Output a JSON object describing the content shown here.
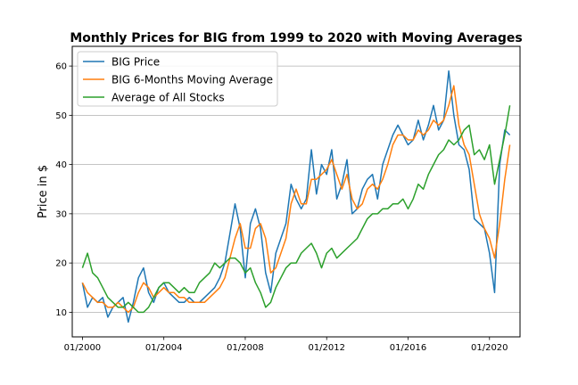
{
  "chart_data": {
    "type": "line",
    "title": "Monthly Prices for BIG from 1999 to 2020 with Moving Averages",
    "xlabel": "",
    "ylabel": "Price in $",
    "xlim": [
      "1999-07",
      "2021-07"
    ],
    "ylim": [
      5,
      64
    ],
    "grid": "horizontal",
    "legend_position": "top-left",
    "x_ticks": [
      {
        "value": "2000-01",
        "label": "01/2000"
      },
      {
        "value": "2004-01",
        "label": "01/2004"
      },
      {
        "value": "2008-01",
        "label": "01/2008"
      },
      {
        "value": "2012-01",
        "label": "01/2012"
      },
      {
        "value": "2016-01",
        "label": "01/2016"
      },
      {
        "value": "2020-01",
        "label": "01/2020"
      }
    ],
    "y_ticks": [
      10,
      20,
      30,
      40,
      50,
      60
    ],
    "series": [
      {
        "name": "BIG Price",
        "color": "#1f77b4",
        "x": [
          "2000-01",
          "2000-04",
          "2000-07",
          "2000-10",
          "2001-01",
          "2001-04",
          "2001-07",
          "2001-10",
          "2002-01",
          "2002-04",
          "2002-07",
          "2002-10",
          "2003-01",
          "2003-04",
          "2003-07",
          "2003-10",
          "2004-01",
          "2004-04",
          "2004-07",
          "2004-10",
          "2005-01",
          "2005-04",
          "2005-07",
          "2005-10",
          "2006-01",
          "2006-04",
          "2006-07",
          "2006-10",
          "2007-01",
          "2007-04",
          "2007-07",
          "2007-10",
          "2008-01",
          "2008-04",
          "2008-07",
          "2008-10",
          "2009-01",
          "2009-04",
          "2009-07",
          "2009-10",
          "2010-01",
          "2010-04",
          "2010-07",
          "2010-10",
          "2011-01",
          "2011-04",
          "2011-07",
          "2011-10",
          "2012-01",
          "2012-04",
          "2012-07",
          "2012-10",
          "2013-01",
          "2013-04",
          "2013-07",
          "2013-10",
          "2014-01",
          "2014-04",
          "2014-07",
          "2014-10",
          "2015-01",
          "2015-04",
          "2015-07",
          "2015-10",
          "2016-01",
          "2016-04",
          "2016-07",
          "2016-10",
          "2017-01",
          "2017-04",
          "2017-07",
          "2017-10",
          "2018-01",
          "2018-04",
          "2018-07",
          "2018-10",
          "2019-01",
          "2019-04",
          "2019-07",
          "2019-10",
          "2020-01",
          "2020-04",
          "2020-07",
          "2020-10",
          "2021-01"
        ],
        "values": [
          16,
          11,
          13,
          12,
          13,
          9,
          11,
          12,
          13,
          8,
          12,
          17,
          19,
          14,
          12,
          15,
          16,
          14,
          13,
          12,
          12,
          13,
          12,
          12,
          13,
          14,
          15,
          17,
          20,
          26,
          32,
          27,
          17,
          28,
          31,
          27,
          18,
          14,
          22,
          25,
          28,
          36,
          33,
          31,
          33,
          43,
          34,
          40,
          38,
          43,
          33,
          36,
          41,
          30,
          31,
          35,
          37,
          38,
          33,
          40,
          43,
          46,
          48,
          46,
          44,
          45,
          49,
          45,
          48,
          52,
          47,
          49,
          59,
          50,
          44,
          43,
          39,
          29,
          28,
          27,
          22,
          14,
          40,
          47,
          46
        ]
      },
      {
        "name": "BIG 6-Months Moving Average",
        "color": "#ff7f0e",
        "x": [
          "2000-01",
          "2000-04",
          "2000-07",
          "2000-10",
          "2001-01",
          "2001-04",
          "2001-07",
          "2001-10",
          "2002-01",
          "2002-04",
          "2002-07",
          "2002-10",
          "2003-01",
          "2003-04",
          "2003-07",
          "2003-10",
          "2004-01",
          "2004-04",
          "2004-07",
          "2004-10",
          "2005-01",
          "2005-04",
          "2005-07",
          "2005-10",
          "2006-01",
          "2006-04",
          "2006-07",
          "2006-10",
          "2007-01",
          "2007-04",
          "2007-07",
          "2007-10",
          "2008-01",
          "2008-04",
          "2008-07",
          "2008-10",
          "2009-01",
          "2009-04",
          "2009-07",
          "2009-10",
          "2010-01",
          "2010-04",
          "2010-07",
          "2010-10",
          "2011-01",
          "2011-04",
          "2011-07",
          "2011-10",
          "2012-01",
          "2012-04",
          "2012-07",
          "2012-10",
          "2013-01",
          "2013-04",
          "2013-07",
          "2013-10",
          "2014-01",
          "2014-04",
          "2014-07",
          "2014-10",
          "2015-01",
          "2015-04",
          "2015-07",
          "2015-10",
          "2016-01",
          "2016-04",
          "2016-07",
          "2016-10",
          "2017-01",
          "2017-04",
          "2017-07",
          "2017-10",
          "2018-01",
          "2018-04",
          "2018-07",
          "2018-10",
          "2019-01",
          "2019-04",
          "2019-07",
          "2019-10",
          "2020-01",
          "2020-04",
          "2020-07",
          "2020-10",
          "2021-01"
        ],
        "values": [
          16,
          14,
          13,
          12,
          12,
          11,
          11,
          12,
          11,
          10,
          11,
          14,
          16,
          15,
          13,
          14,
          15,
          14,
          14,
          13,
          13,
          12,
          12,
          12,
          12,
          13,
          14,
          15,
          17,
          21,
          25,
          28,
          23,
          23,
          27,
          28,
          25,
          18,
          19,
          22,
          25,
          32,
          35,
          32,
          32,
          37,
          37,
          38,
          39,
          41,
          38,
          35,
          38,
          33,
          31,
          32,
          35,
          36,
          35,
          37,
          40,
          44,
          46,
          46,
          45,
          45,
          47,
          46,
          47,
          49,
          48,
          49,
          52,
          56,
          48,
          44,
          42,
          36,
          30,
          27,
          25,
          21,
          28,
          37,
          44
        ]
      },
      {
        "name": "Average of All Stocks",
        "color": "#2ca02c",
        "x": [
          "2000-01",
          "2000-04",
          "2000-07",
          "2000-10",
          "2001-01",
          "2001-04",
          "2001-07",
          "2001-10",
          "2002-01",
          "2002-04",
          "2002-07",
          "2002-10",
          "2003-01",
          "2003-04",
          "2003-07",
          "2003-10",
          "2004-01",
          "2004-04",
          "2004-07",
          "2004-10",
          "2005-01",
          "2005-04",
          "2005-07",
          "2005-10",
          "2006-01",
          "2006-04",
          "2006-07",
          "2006-10",
          "2007-01",
          "2007-04",
          "2007-07",
          "2007-10",
          "2008-01",
          "2008-04",
          "2008-07",
          "2008-10",
          "2009-01",
          "2009-04",
          "2009-07",
          "2009-10",
          "2010-01",
          "2010-04",
          "2010-07",
          "2010-10",
          "2011-01",
          "2011-04",
          "2011-07",
          "2011-10",
          "2012-01",
          "2012-04",
          "2012-07",
          "2012-10",
          "2013-01",
          "2013-04",
          "2013-07",
          "2013-10",
          "2014-01",
          "2014-04",
          "2014-07",
          "2014-10",
          "2015-01",
          "2015-04",
          "2015-07",
          "2015-10",
          "2016-01",
          "2016-04",
          "2016-07",
          "2016-10",
          "2017-01",
          "2017-04",
          "2017-07",
          "2017-10",
          "2018-01",
          "2018-04",
          "2018-07",
          "2018-10",
          "2019-01",
          "2019-04",
          "2019-07",
          "2019-10",
          "2020-01",
          "2020-04",
          "2020-07",
          "2020-10",
          "2021-01"
        ],
        "values": [
          19,
          22,
          18,
          17,
          15,
          13,
          12,
          11,
          11,
          12,
          11,
          10,
          10,
          11,
          13,
          15,
          16,
          16,
          15,
          14,
          15,
          14,
          14,
          16,
          17,
          18,
          20,
          19,
          20,
          21,
          21,
          20,
          18,
          19,
          16,
          14,
          11,
          12,
          15,
          17,
          19,
          20,
          20,
          22,
          23,
          24,
          22,
          19,
          22,
          23,
          21,
          22,
          23,
          24,
          25,
          27,
          29,
          30,
          30,
          31,
          31,
          32,
          32,
          33,
          31,
          33,
          36,
          35,
          38,
          40,
          42,
          43,
          45,
          44,
          45,
          47,
          48,
          42,
          43,
          41,
          44,
          36,
          41,
          46,
          52
        ]
      }
    ]
  }
}
